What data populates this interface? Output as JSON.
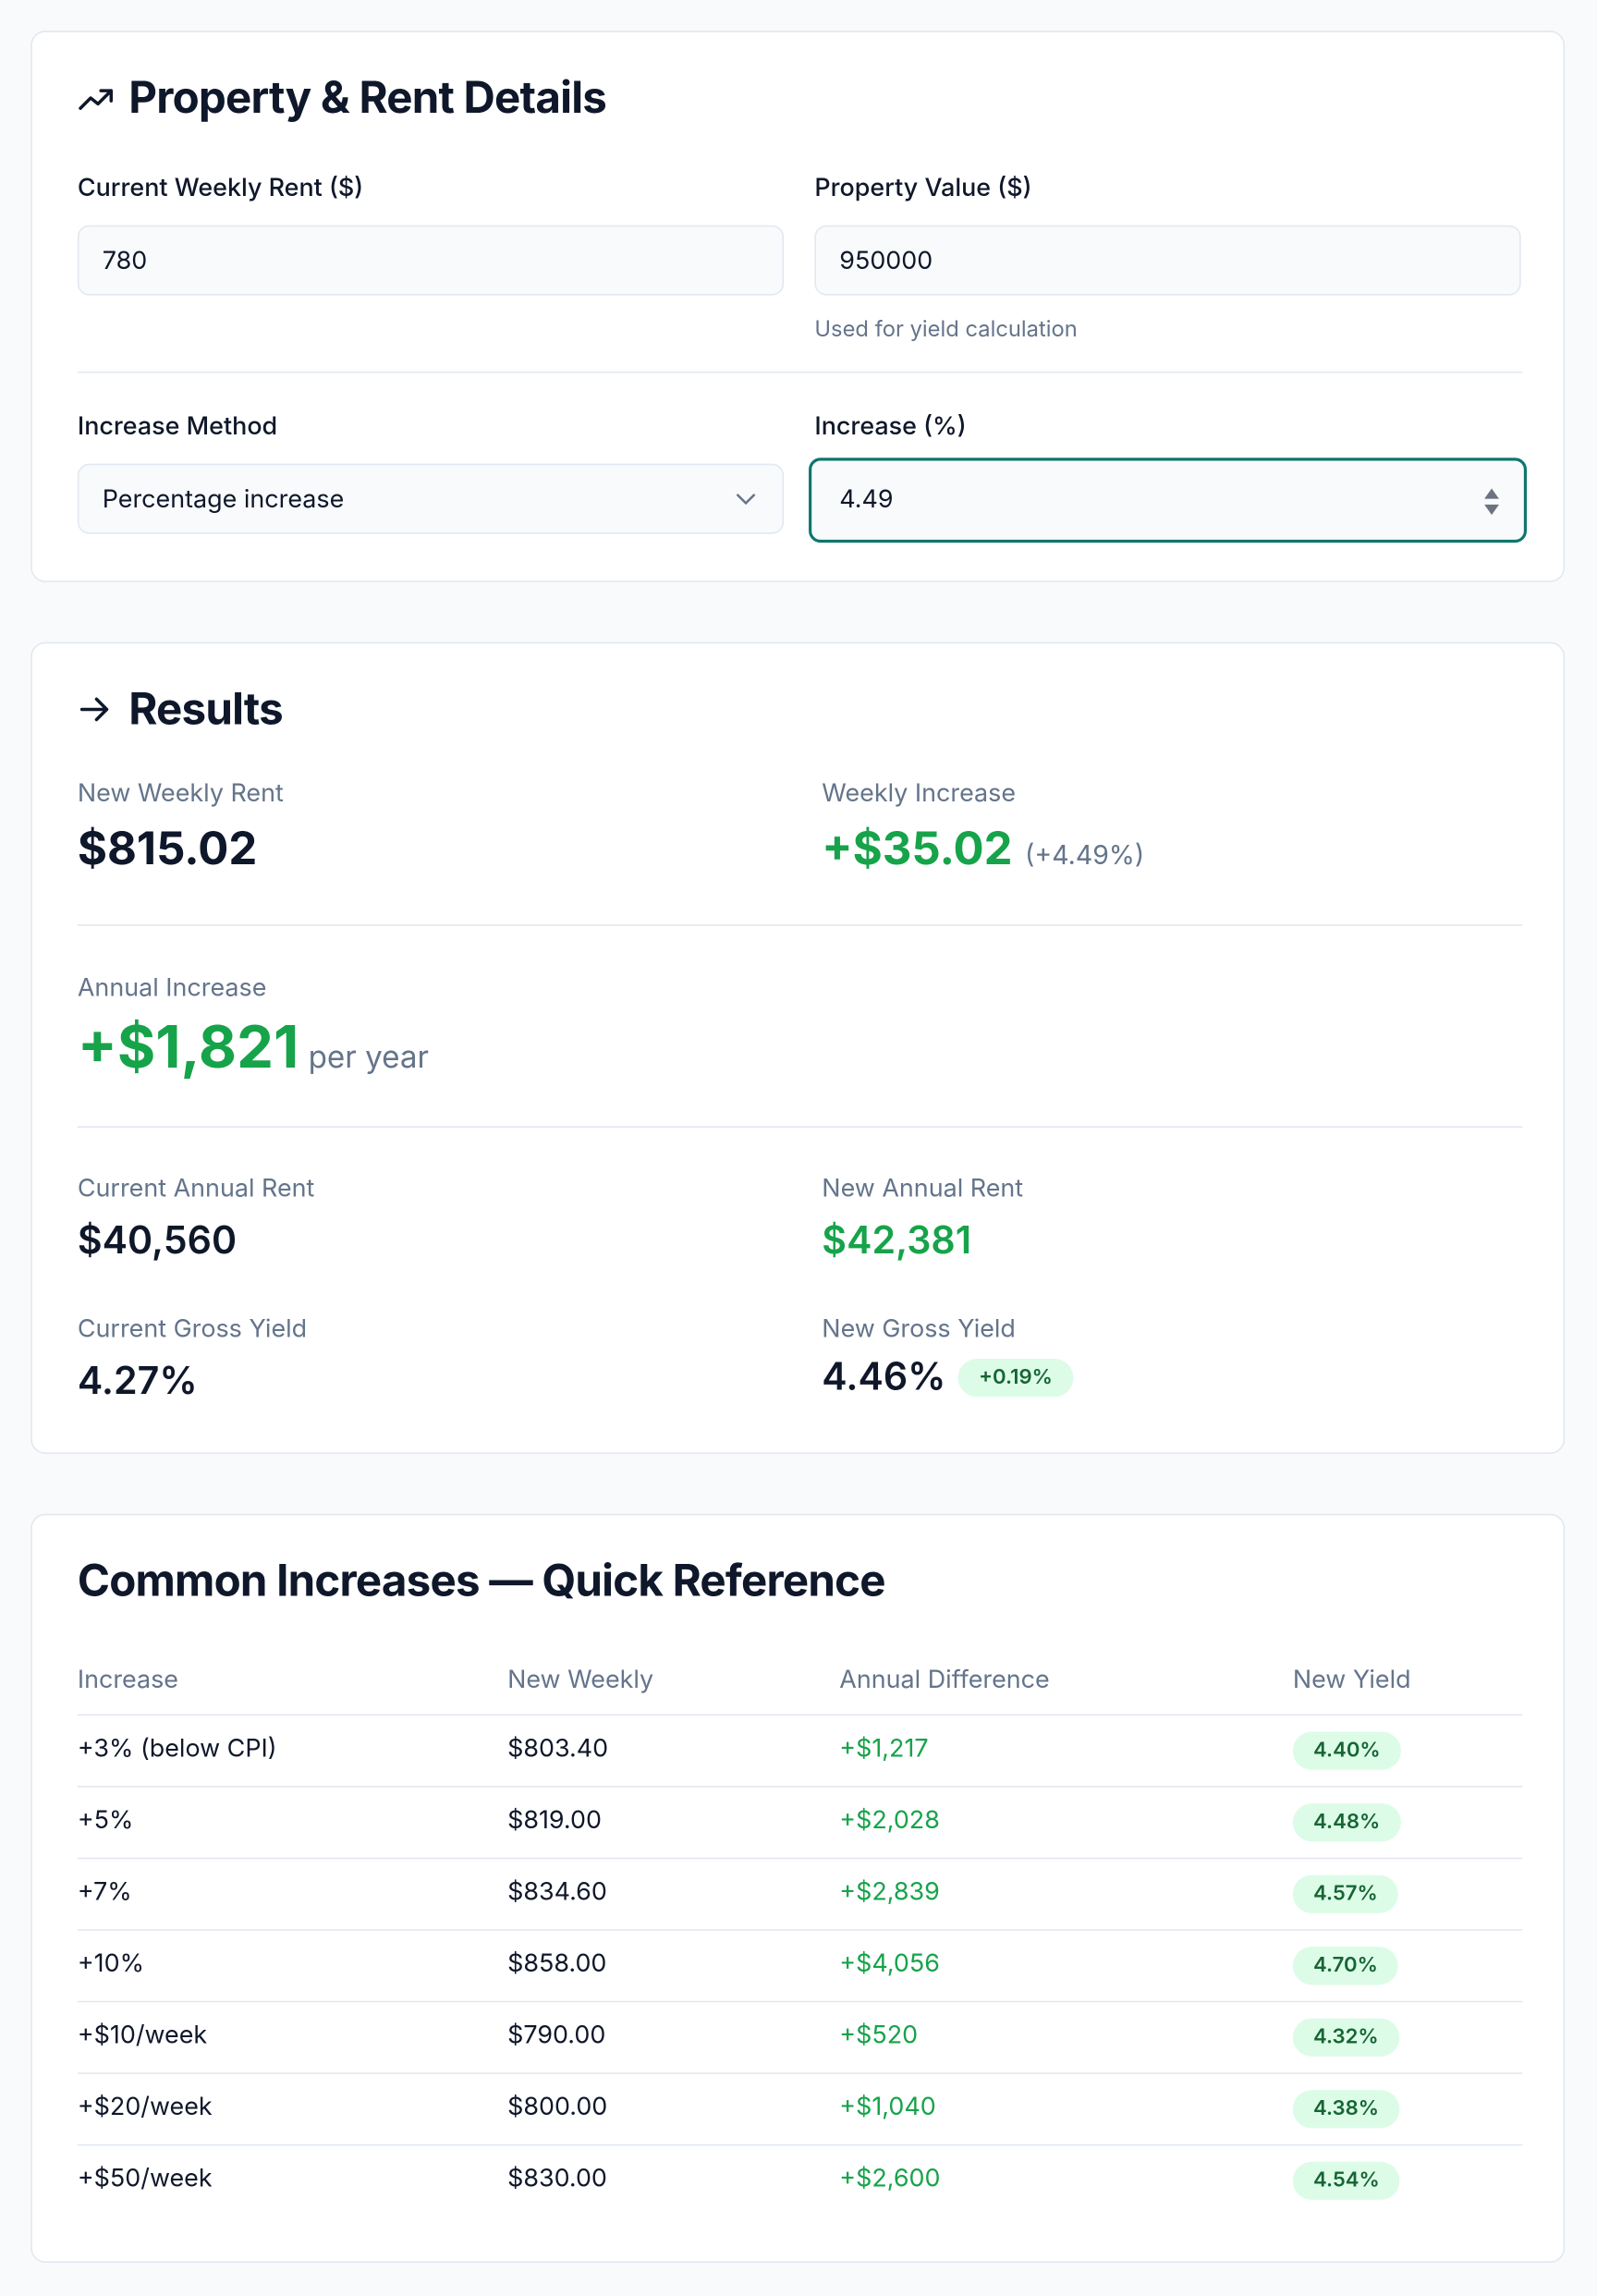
{
  "property_details": {
    "title": "Property & Rent Details",
    "weekly_rent": {
      "label": "Current Weekly Rent ($)",
      "value": "780"
    },
    "property_value": {
      "label": "Property Value ($)",
      "value": "950000",
      "hint": "Used for yield calculation"
    },
    "increase_method": {
      "label": "Increase Method",
      "value": "Percentage increase"
    },
    "increase": {
      "label": "Increase (%)",
      "value": "4.49"
    }
  },
  "results": {
    "title": "Results",
    "new_weekly_rent": {
      "label": "New Weekly Rent",
      "value": "$815.02"
    },
    "weekly_increase": {
      "label": "Weekly Increase",
      "value": "+$35.02",
      "note": "(+4.49%)"
    },
    "annual_increase": {
      "label": "Annual Increase",
      "value": "+$1,821",
      "unit": "per year"
    },
    "current_annual_rent": {
      "label": "Current Annual Rent",
      "value": "$40,560"
    },
    "new_annual_rent": {
      "label": "New Annual Rent",
      "value": "$42,381"
    },
    "current_gross_yield": {
      "label": "Current Gross Yield",
      "value": "4.27%"
    },
    "new_gross_yield": {
      "label": "New Gross Yield",
      "value": "4.46%",
      "badge": "+0.19%"
    }
  },
  "reference": {
    "title": "Common Increases — Quick Reference",
    "columns": [
      "Increase",
      "New Weekly",
      "Annual Difference",
      "New Yield"
    ],
    "rows": [
      [
        "+3% (below CPI)",
        "$803.40",
        "+$1,217",
        "4.40%"
      ],
      [
        "+5%",
        "$819.00",
        "+$2,028",
        "4.48%"
      ],
      [
        "+7%",
        "$834.60",
        "+$2,839",
        "4.57%"
      ],
      [
        "+10%",
        "$858.00",
        "+$4,056",
        "4.70%"
      ],
      [
        "+$10/week",
        "$790.00",
        "+$520",
        "4.32%"
      ],
      [
        "+$20/week",
        "$800.00",
        "+$1,040",
        "4.38%"
      ],
      [
        "+$50/week",
        "$830.00",
        "+$2,600",
        "4.54%"
      ]
    ]
  }
}
